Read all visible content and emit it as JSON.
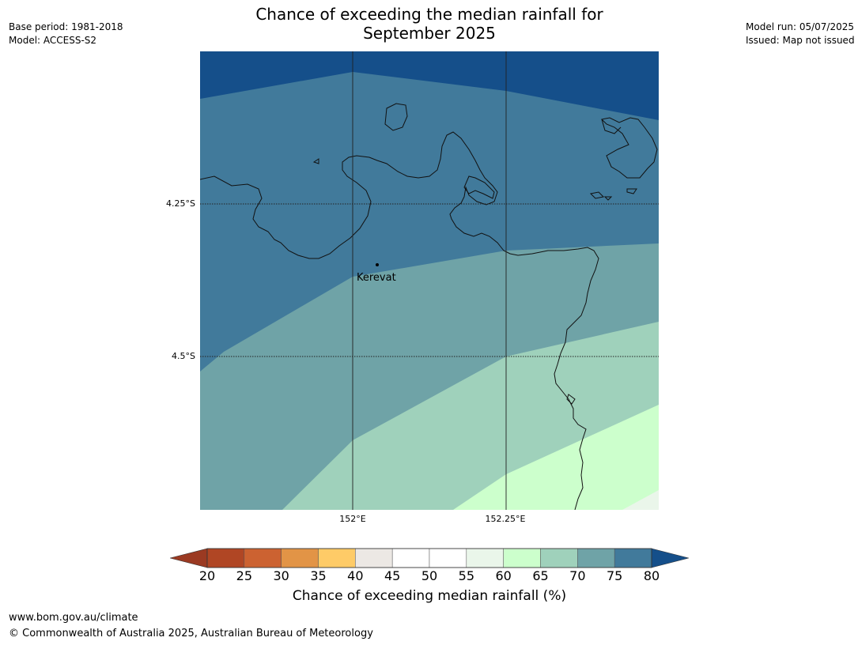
{
  "header": {
    "title_line1": "Chance of exceeding the median rainfall for",
    "title_line2": "September 2025",
    "base_period": "Base period: 1981-2018",
    "model": "Model: ACCESS-S2",
    "model_run": "Model run: 05/07/2025",
    "issued": "Issued: Map not issued"
  },
  "map": {
    "lat_labels": [
      "4.25°S",
      "4.5°S"
    ],
    "lon_labels": [
      "152°E",
      "152.25°E"
    ],
    "place": "Kerevat",
    "colors": {
      "band_80_plus": "#154f8a",
      "band_75_80": "#417a9b",
      "band_70_75": "#6fa3a7",
      "band_65_70": "#9fd1bb",
      "band_60_65": "#ccffcc",
      "band_55_60": "#eaf6ea"
    }
  },
  "colorbar": {
    "label": "Chance of exceeding median rainfall (%)",
    "ticks": [
      "20",
      "25",
      "30",
      "35",
      "40",
      "45",
      "50",
      "55",
      "60",
      "65",
      "70",
      "75",
      "80"
    ],
    "colors": [
      "#b04624",
      "#cc6231",
      "#e29446",
      "#fecb67",
      "#ece8e4",
      "#ffffff",
      "#ffffff",
      "#eaf6ea",
      "#ccffcc",
      "#9fd1bb",
      "#6fa3a7",
      "#417a9b"
    ],
    "low_extend_color": "#9b3a22",
    "high_extend_color": "#154f8a"
  },
  "footer": {
    "url": "www.bom.gov.au/climate",
    "copyright": "© Commonwealth of Australia 2025, Australian Bureau of Meteorology"
  }
}
